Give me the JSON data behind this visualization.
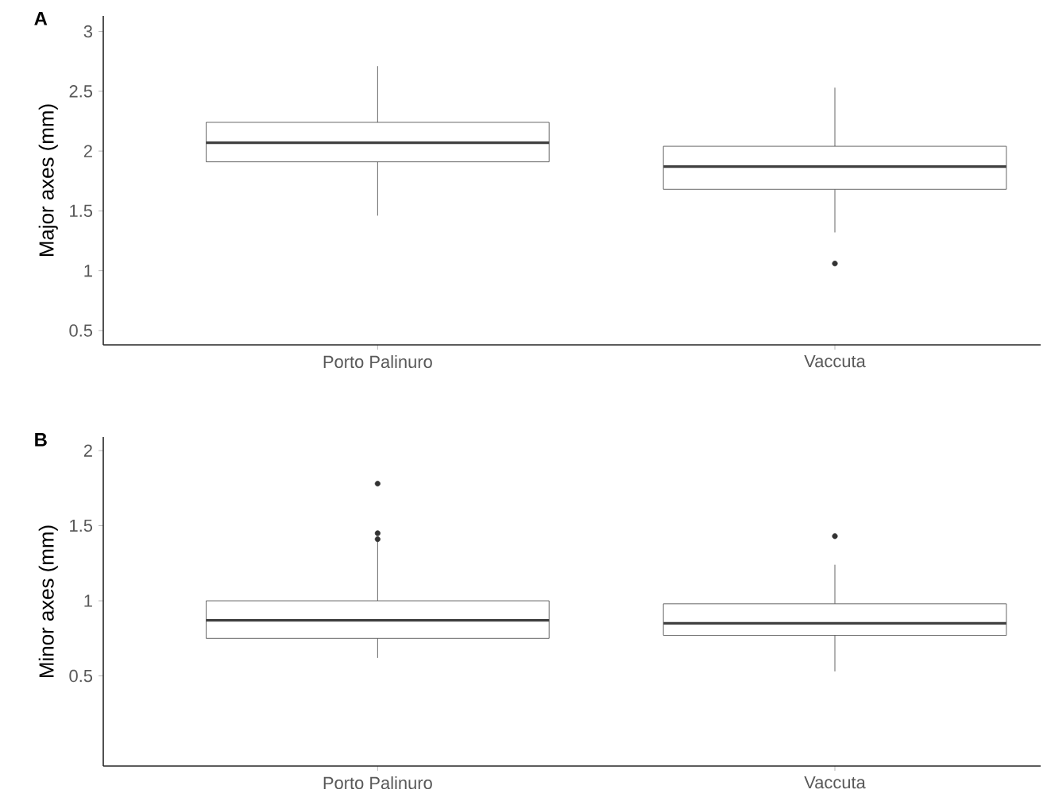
{
  "chart_data": [
    {
      "type": "box",
      "title": "A",
      "ylabel": "Major axes (mm)",
      "categories": [
        "Porto Palinuro",
        "Vaccuta"
      ],
      "ylim": [
        0.38,
        3.13
      ],
      "yticks": [
        0.5,
        1,
        1.5,
        2,
        2.5,
        3
      ],
      "boxes": [
        {
          "low": 1.46,
          "q1": 1.91,
          "median": 2.07,
          "q3": 2.24,
          "high": 2.71
        },
        {
          "low": 1.32,
          "q1": 1.68,
          "median": 1.87,
          "q3": 2.04,
          "high": 2.53,
          "outliers": [
            1.06
          ]
        }
      ]
    },
    {
      "type": "box",
      "title": "B",
      "ylabel": "Minor axes (mm)",
      "categories": [
        "Porto Palinuro",
        "Vaccuta"
      ],
      "ylim": [
        -0.1,
        2.09
      ],
      "yticks": [
        0.5,
        1,
        1.5,
        2
      ],
      "boxes": [
        {
          "low": 0.62,
          "q1": 0.75,
          "median": 0.87,
          "q3": 1.0,
          "high": 1.4,
          "outliers": [
            1.78,
            1.45,
            1.41
          ]
        },
        {
          "low": 0.53,
          "q1": 0.77,
          "median": 0.85,
          "q3": 0.98,
          "high": 1.24,
          "outliers": [
            1.43
          ]
        }
      ]
    }
  ]
}
